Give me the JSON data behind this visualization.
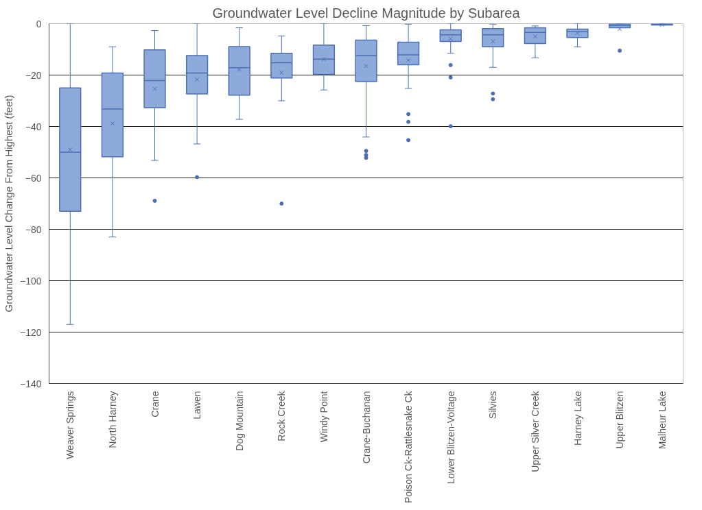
{
  "chart_data": {
    "type": "box",
    "title": "Groundwater Level Decline Magnitude by Subarea",
    "ylabel": "Groundwater Level Change From Highest (feet)",
    "categories": [
      "Weaver Springs",
      "North Harney",
      "Crane",
      "Lawen",
      "Dog Mountain",
      "Rock Creek",
      "Windy Point",
      "Crane-Buchanan",
      "Poison Ck-Rattlesnake Ck",
      "Lower Blitzen-Voltage",
      "Silvies",
      "Upper Silver Creek",
      "Harney Lake",
      "Upper Blitzen",
      "Malheur Lake"
    ],
    "ylim": [
      -140,
      0
    ],
    "yticks": [
      -140,
      -120,
      -100,
      -80,
      -60,
      -40,
      -20,
      0
    ],
    "grid": "y",
    "series": [
      {
        "color": "#8eaadb",
        "boxes": [
          {
            "low": -117,
            "q1": -73,
            "median": -50,
            "q3": -25,
            "high": 0,
            "mean": -49
          },
          {
            "low": -83,
            "q1": -51.8,
            "median": -33.2,
            "q3": -19.2,
            "high": -9,
            "mean": -38.8
          },
          {
            "low": -53.2,
            "q1": -32.7,
            "median": -22.1,
            "q3": -10.2,
            "high": -2.7,
            "mean": -25.3,
            "outliers": [
              -68.9
            ]
          },
          {
            "low": -46.8,
            "q1": -27.3,
            "median": -19.2,
            "q3": -12.4,
            "high": 0,
            "mean": -21.8,
            "outliers": [
              -59.7
            ]
          },
          {
            "low": -37.2,
            "q1": -27.8,
            "median": -17.1,
            "q3": -8.9,
            "high": -1.6,
            "mean": -17.9
          },
          {
            "low": -30,
            "q1": -21.1,
            "median": -15.2,
            "q3": -11.5,
            "high": -4.8,
            "mean": -19.1,
            "outliers": [
              -70
            ]
          },
          {
            "low": -25.8,
            "q1": -19.7,
            "median": -13.8,
            "q3": -8.3,
            "high": 0,
            "mean": -13.8
          },
          {
            "low": -44.1,
            "q1": -22.5,
            "median": -12.4,
            "q3": -6.4,
            "high": -0.8,
            "mean": -16.5,
            "outliers": [
              -49.5,
              -51.1,
              -52.2
            ]
          },
          {
            "low": -25.2,
            "q1": -16,
            "median": -12.1,
            "q3": -7.2,
            "high": -0.2,
            "mean": -14.3,
            "outliers": [
              -35.2,
              -38.2,
              -45.3
            ]
          },
          {
            "low": -11.5,
            "q1": -6.9,
            "median": -4.3,
            "q3": -2.4,
            "high": 0,
            "mean": -5.9,
            "outliers": [
              -16.1,
              -20.9,
              -39.9
            ]
          },
          {
            "low": -17,
            "q1": -9,
            "median": -4.3,
            "q3": -1.9,
            "high": -0.2,
            "mean": -6.9,
            "outliers": [
              -27.2,
              -29.4
            ]
          },
          {
            "low": -13.3,
            "q1": -7.7,
            "median": -3.4,
            "q3": -1.6,
            "high": -0.9,
            "mean": -5
          },
          {
            "low": -9,
            "q1": -5.4,
            "median": -3.1,
            "q3": -2.1,
            "high": 0,
            "mean": -3.7
          },
          {
            "low": -1.6,
            "q1": -1.6,
            "median": -0.7,
            "q3": -0.1,
            "high": 0,
            "mean": -2.1,
            "outliers": [
              -10.5
            ]
          },
          {
            "low": -0.6,
            "q1": -0.5,
            "median": -0.3,
            "q3": -0.1,
            "high": 0,
            "mean": -0.4
          }
        ]
      }
    ]
  }
}
